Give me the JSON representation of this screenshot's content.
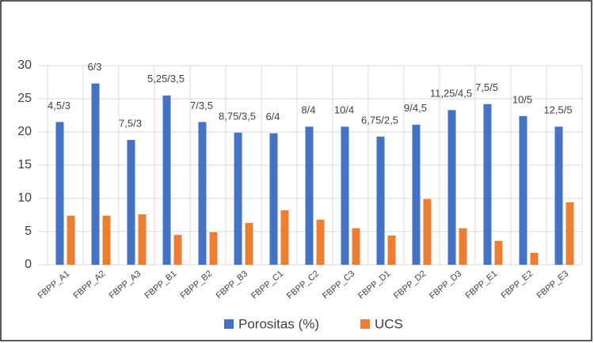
{
  "chart_data": {
    "type": "bar",
    "categories": [
      "FBPP_A1",
      "FBPP_A2",
      "FBPP_A3",
      "FBPP_B1",
      "FBPP_B2",
      "FBPP_B3",
      "FBPP_C1",
      "FBPP_C2",
      "FBPP_C3",
      "FBPP_D1",
      "FBPP_D2",
      "FBPP_D3",
      "FBPP_E1",
      "FBPP_E2",
      "FBPP_E3"
    ],
    "series": [
      {
        "name": "Porositas (%)",
        "color": "#4472c4",
        "values": [
          21.5,
          27.3,
          18.8,
          25.5,
          21.5,
          19.9,
          19.8,
          20.8,
          20.8,
          19.3,
          21.1,
          23.3,
          24.2,
          22.4,
          20.8
        ]
      },
      {
        "name": "UCS",
        "color": "#ed7d31",
        "values": [
          7.4,
          7.4,
          7.6,
          4.5,
          4.9,
          6.3,
          8.2,
          6.8,
          5.5,
          4.4,
          9.9,
          5.5,
          3.6,
          1.8,
          9.4
        ]
      }
    ],
    "annotations": [
      "4,5/3",
      "6/3",
      "7,5/3",
      "5,25/3,5",
      "7/3,5",
      "8,75/3,5",
      "6/4",
      "8/4",
      "10/4",
      "6,75/2,5",
      "9/4,5",
      "11,25/4,5",
      "7,5/5",
      "10/5",
      "12,5/5"
    ],
    "ylim": [
      0,
      30
    ],
    "yticks": [
      0,
      5,
      10,
      15,
      20,
      25,
      30
    ],
    "grid": true,
    "legend": "bottom"
  }
}
